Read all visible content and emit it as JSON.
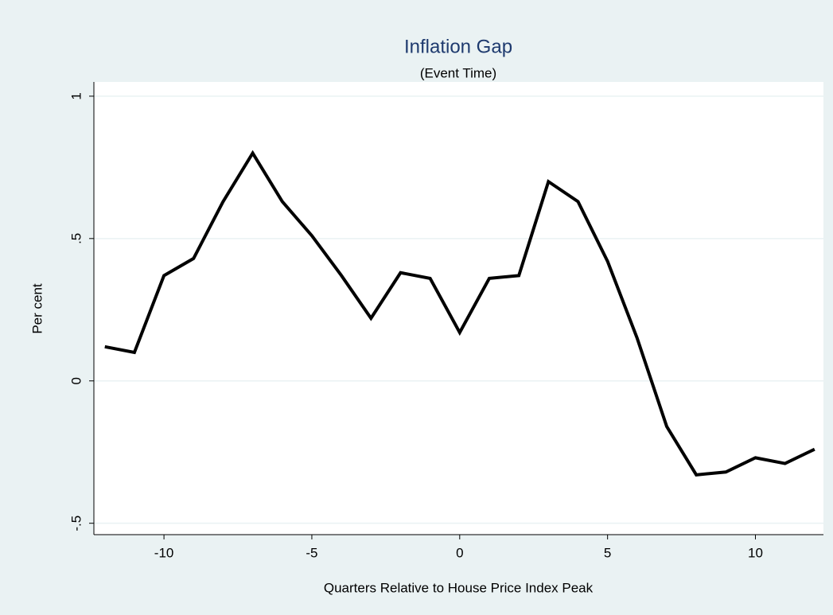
{
  "chart_data": {
    "type": "line",
    "title": "Inflation Gap",
    "subtitle": "(Event Time)",
    "x_label": "Quarters Relative to House Price Index Peak",
    "y_label": "Per cent",
    "x": [
      -12,
      -11,
      -10,
      -9,
      -8,
      -7,
      -6,
      -5,
      -4,
      -3,
      -2,
      -1,
      0,
      1,
      2,
      3,
      4,
      5,
      6,
      7,
      8,
      9,
      10,
      11,
      12
    ],
    "series": [
      {
        "name": "Inflation Gap",
        "color": "#000000",
        "values": [
          0.12,
          0.1,
          0.37,
          0.43,
          0.63,
          0.8,
          0.63,
          0.51,
          0.37,
          0.22,
          0.38,
          0.36,
          0.17,
          0.36,
          0.37,
          0.7,
          0.63,
          0.42,
          0.15,
          -0.16,
          -0.33,
          -0.32,
          -0.27,
          -0.29,
          -0.24
        ]
      }
    ],
    "xlim": [
      -12.37,
      12.3
    ],
    "xticks": [
      -10,
      -5,
      0,
      5,
      10
    ],
    "ylim": [
      -0.54,
      1.05
    ],
    "yticks": [
      {
        "value": -0.5,
        "label": "-.5"
      },
      0,
      {
        "value": 0.5,
        "label": ".5"
      },
      1
    ],
    "grid": true
  }
}
